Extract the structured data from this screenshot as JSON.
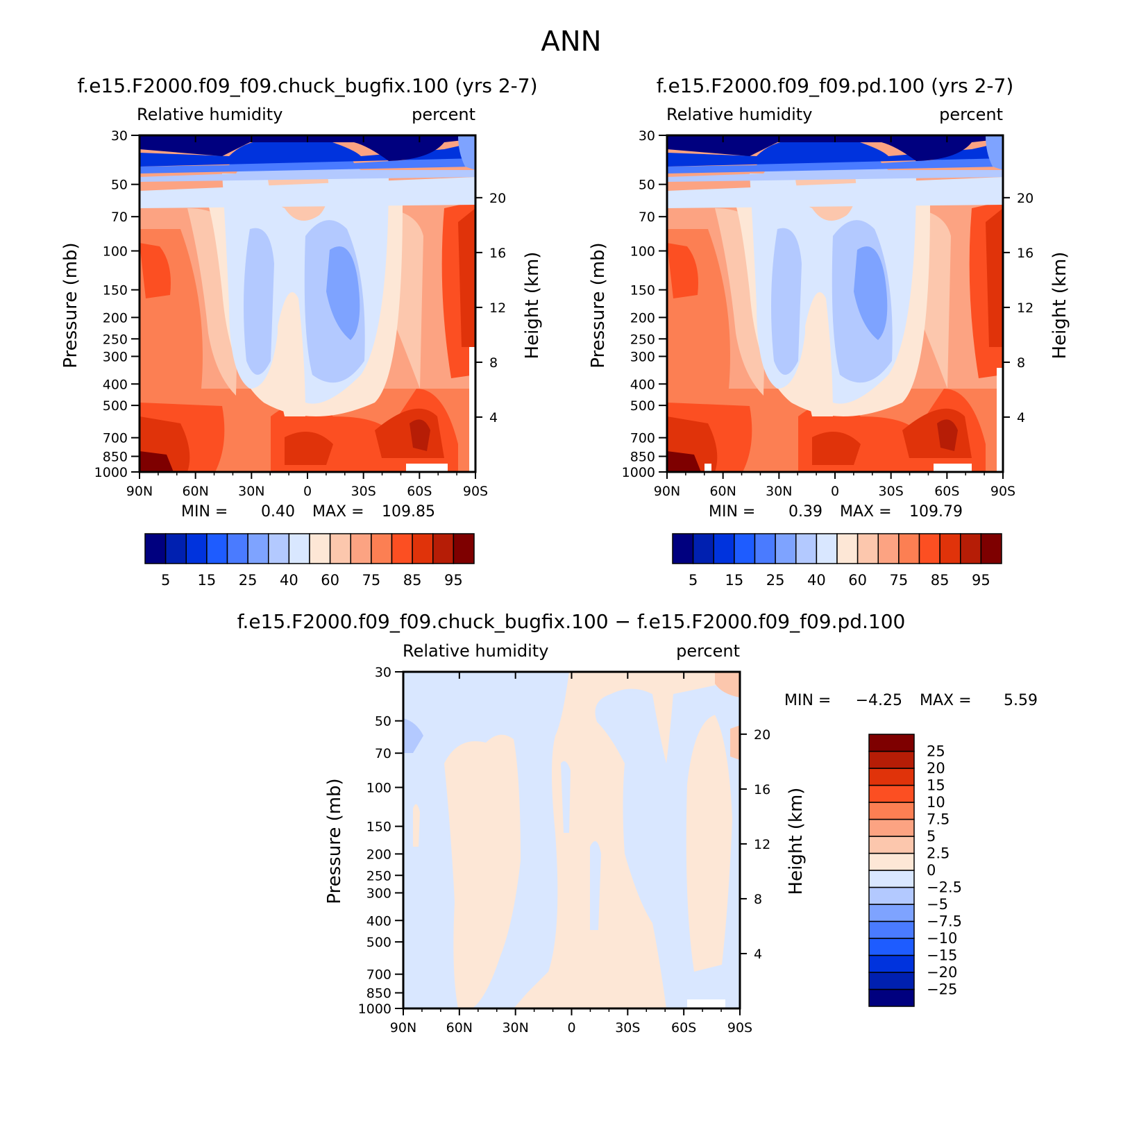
{
  "page_title": "ANN",
  "colors": {
    "abs_levels": [
      "#00007f",
      "#0020b0",
      "#0033dd",
      "#1e5cff",
      "#4a7bff",
      "#7ea3ff",
      "#b3c9ff",
      "#d9e7ff",
      "#fde7d6",
      "#fcc7ad",
      "#fca382",
      "#fc7f53",
      "#fc4f22",
      "#e0330a",
      "#b61d06",
      "#7e0000"
    ],
    "diff_levels": [
      "#00007f",
      "#0020b0",
      "#0033dd",
      "#1e5cff",
      "#4a7bff",
      "#7ea3ff",
      "#b3c9ff",
      "#d9e7ff",
      "#fde7d6",
      "#fcc7ad",
      "#fca382",
      "#fc7f53",
      "#fc4f22",
      "#e0330a",
      "#b61d06",
      "#7e0000"
    ]
  },
  "chart_data": [
    {
      "type": "heatmap",
      "id": "control",
      "title": "f.e15.F2000.f09_f09.chuck_bugfix.100 (yrs 2-7)",
      "left_label": "Relative humidity",
      "right_label": "percent",
      "ylabel": "Pressure (mb)",
      "y2label": "Height (km)",
      "x_ticks": [
        "90N",
        "60N",
        "30N",
        "0",
        "30S",
        "60S",
        "90S"
      ],
      "x_values": [
        90,
        60,
        30,
        0,
        -30,
        -60,
        -90
      ],
      "y_ticks": [
        "30",
        "50",
        "70",
        "100",
        "150",
        "200",
        "250",
        "300",
        "400",
        "500",
        "700",
        "850",
        "1000"
      ],
      "y_values": [
        30,
        50,
        70,
        100,
        150,
        200,
        250,
        300,
        400,
        500,
        700,
        850,
        1000
      ],
      "y2_ticks": [
        "20",
        "16",
        "12",
        "8",
        "4"
      ],
      "y2_values": [
        20,
        16,
        12,
        8,
        4
      ],
      "ylim": [
        30,
        1000
      ],
      "xlim": [
        90,
        -90
      ],
      "stats": {
        "min_label": "MIN =",
        "min": "0.40",
        "max_label": "MAX =",
        "max": "109.85"
      },
      "colorbar_labels": [
        "5",
        "15",
        "25",
        "40",
        "60",
        "75",
        "85",
        "95"
      ],
      "levels": [
        5,
        10,
        15,
        20,
        25,
        30,
        40,
        50,
        60,
        70,
        75,
        80,
        85,
        90,
        95
      ]
    },
    {
      "type": "heatmap",
      "id": "test",
      "title": "f.e15.F2000.f09_f09.pd.100 (yrs 2-7)",
      "left_label": "Relative humidity",
      "right_label": "percent",
      "ylabel": "Pressure (mb)",
      "y2label": "Height (km)",
      "x_ticks": [
        "90N",
        "60N",
        "30N",
        "0",
        "30S",
        "60S",
        "90S"
      ],
      "x_values": [
        90,
        60,
        30,
        0,
        -30,
        -60,
        -90
      ],
      "y_ticks": [
        "30",
        "50",
        "70",
        "100",
        "150",
        "200",
        "250",
        "300",
        "400",
        "500",
        "700",
        "850",
        "1000"
      ],
      "y_values": [
        30,
        50,
        70,
        100,
        150,
        200,
        250,
        300,
        400,
        500,
        700,
        850,
        1000
      ],
      "y2_ticks": [
        "20",
        "16",
        "12",
        "8",
        "4"
      ],
      "y2_values": [
        20,
        16,
        12,
        8,
        4
      ],
      "ylim": [
        30,
        1000
      ],
      "xlim": [
        90,
        -90
      ],
      "stats": {
        "min_label": "MIN =",
        "min": "0.39",
        "max_label": "MAX =",
        "max": "109.79"
      },
      "colorbar_labels": [
        "5",
        "15",
        "25",
        "40",
        "60",
        "75",
        "85",
        "95"
      ],
      "levels": [
        5,
        10,
        15,
        20,
        25,
        30,
        40,
        50,
        60,
        70,
        75,
        80,
        85,
        90,
        95
      ]
    },
    {
      "type": "heatmap",
      "id": "difference",
      "title": "f.e15.F2000.f09_f09.chuck_bugfix.100 − f.e15.F2000.f09_f09.pd.100",
      "left_label": "Relative humidity",
      "right_label": "percent",
      "ylabel": "Pressure (mb)",
      "y2label": "Height (km)",
      "x_ticks": [
        "90N",
        "60N",
        "30N",
        "0",
        "30S",
        "60S",
        "90S"
      ],
      "x_values": [
        90,
        60,
        30,
        0,
        -30,
        -60,
        -90
      ],
      "y_ticks": [
        "30",
        "50",
        "70",
        "100",
        "150",
        "200",
        "250",
        "300",
        "400",
        "500",
        "700",
        "850",
        "1000"
      ],
      "y_values": [
        30,
        50,
        70,
        100,
        150,
        200,
        250,
        300,
        400,
        500,
        700,
        850,
        1000
      ],
      "y2_ticks": [
        "20",
        "16",
        "12",
        "8",
        "4"
      ],
      "y2_values": [
        20,
        16,
        12,
        8,
        4
      ],
      "ylim": [
        30,
        1000
      ],
      "xlim": [
        90,
        -90
      ],
      "stats": {
        "min_label": "MIN =",
        "min": "−4.25",
        "max_label": "MAX =",
        "max": "5.59"
      },
      "colorbar_labels": [
        "25",
        "20",
        "15",
        "10",
        "7.5",
        "5",
        "2.5",
        "0",
        "−2.5",
        "−5",
        "−7.5",
        "−10",
        "−15",
        "−20",
        "−25"
      ],
      "levels": [
        -25,
        -20,
        -15,
        -10,
        -7.5,
        -5,
        -2.5,
        0,
        2.5,
        5,
        7.5,
        10,
        15,
        20,
        25
      ]
    }
  ]
}
